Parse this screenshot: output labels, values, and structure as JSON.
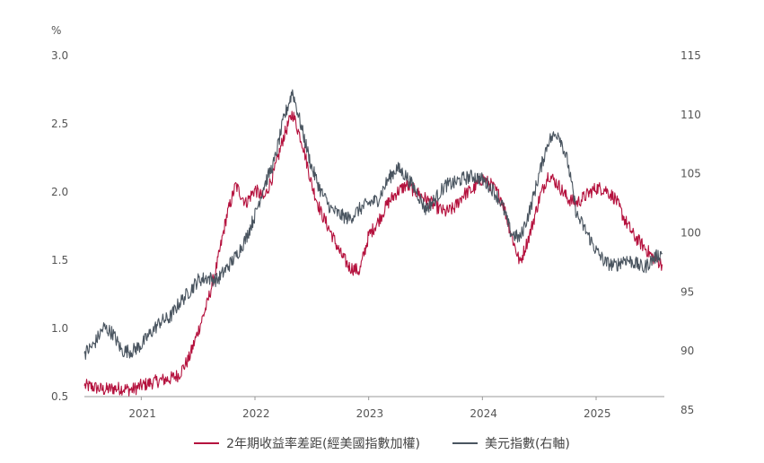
{
  "chart_data": {
    "type": "line",
    "left_axis_unit": "%",
    "left_ticks": [
      "3.0",
      "2.5",
      "2.0",
      "1.5",
      "1.0",
      "0.5"
    ],
    "right_ticks": [
      "115",
      "110",
      "105",
      "100",
      "95",
      "90",
      "85"
    ],
    "x_ticks": [
      "2021",
      "2022",
      "2023",
      "2024",
      "2025"
    ],
    "ylim_left": [
      0.5,
      3.0
    ],
    "ylim_right": [
      85,
      115
    ],
    "xlim": [
      2020.5,
      2025.6
    ],
    "grid": false,
    "legend_position": "bottom-center",
    "series": [
      {
        "name": "2年期收益率差距(經美國指數加權)",
        "axis": "left",
        "color": "#b5123e",
        "points": [
          [
            2020.5,
            0.58
          ],
          [
            2020.58,
            0.57
          ],
          [
            2020.67,
            0.55
          ],
          [
            2020.75,
            0.56
          ],
          [
            2020.83,
            0.56
          ],
          [
            2020.92,
            0.55
          ],
          [
            2021.0,
            0.58
          ],
          [
            2021.08,
            0.6
          ],
          [
            2021.17,
            0.62
          ],
          [
            2021.25,
            0.63
          ],
          [
            2021.33,
            0.66
          ],
          [
            2021.42,
            0.78
          ],
          [
            2021.5,
            0.98
          ],
          [
            2021.58,
            1.18
          ],
          [
            2021.67,
            1.48
          ],
          [
            2021.75,
            1.82
          ],
          [
            2021.83,
            2.05
          ],
          [
            2021.92,
            1.92
          ],
          [
            2022.0,
            2.02
          ],
          [
            2022.08,
            1.95
          ],
          [
            2022.17,
            2.15
          ],
          [
            2022.25,
            2.4
          ],
          [
            2022.33,
            2.58
          ],
          [
            2022.42,
            2.35
          ],
          [
            2022.5,
            2.05
          ],
          [
            2022.58,
            1.85
          ],
          [
            2022.67,
            1.7
          ],
          [
            2022.75,
            1.55
          ],
          [
            2022.83,
            1.45
          ],
          [
            2022.92,
            1.42
          ],
          [
            2023.0,
            1.68
          ],
          [
            2023.08,
            1.78
          ],
          [
            2023.17,
            1.92
          ],
          [
            2023.25,
            2.0
          ],
          [
            2023.33,
            2.05
          ],
          [
            2023.42,
            2.0
          ],
          [
            2023.5,
            1.95
          ],
          [
            2023.58,
            1.9
          ],
          [
            2023.67,
            1.85
          ],
          [
            2023.75,
            1.88
          ],
          [
            2023.83,
            1.98
          ],
          [
            2023.92,
            2.02
          ],
          [
            2024.0,
            2.1
          ],
          [
            2024.08,
            2.05
          ],
          [
            2024.17,
            1.95
          ],
          [
            2024.25,
            1.7
          ],
          [
            2024.33,
            1.48
          ],
          [
            2024.42,
            1.7
          ],
          [
            2024.5,
            1.95
          ],
          [
            2024.58,
            2.13
          ],
          [
            2024.67,
            2.05
          ],
          [
            2024.75,
            1.95
          ],
          [
            2024.83,
            1.92
          ],
          [
            2024.92,
            1.98
          ],
          [
            2025.0,
            2.03
          ],
          [
            2025.08,
            2.02
          ],
          [
            2025.17,
            1.95
          ],
          [
            2025.25,
            1.8
          ],
          [
            2025.33,
            1.68
          ],
          [
            2025.42,
            1.6
          ],
          [
            2025.5,
            1.52
          ],
          [
            2025.58,
            1.47
          ]
        ]
      },
      {
        "name": "美元指數(右軸)",
        "axis": "right",
        "color": "#4a5560",
        "points": [
          [
            2020.5,
            89.8
          ],
          [
            2020.58,
            90.5
          ],
          [
            2020.67,
            92.0
          ],
          [
            2020.75,
            91.5
          ],
          [
            2020.83,
            90.0
          ],
          [
            2020.92,
            90.0
          ],
          [
            2021.0,
            90.5
          ],
          [
            2021.08,
            91.5
          ],
          [
            2021.17,
            92.5
          ],
          [
            2021.25,
            92.8
          ],
          [
            2021.33,
            94.0
          ],
          [
            2021.42,
            95.0
          ],
          [
            2021.5,
            96.0
          ],
          [
            2021.58,
            96.2
          ],
          [
            2021.67,
            96.0
          ],
          [
            2021.75,
            97.0
          ],
          [
            2021.83,
            98.0
          ],
          [
            2021.92,
            99.5
          ],
          [
            2022.0,
            101.5
          ],
          [
            2022.08,
            104.0
          ],
          [
            2022.17,
            106.0
          ],
          [
            2022.25,
            109.5
          ],
          [
            2022.33,
            112.0
          ],
          [
            2022.42,
            108.5
          ],
          [
            2022.5,
            105.5
          ],
          [
            2022.58,
            103.5
          ],
          [
            2022.67,
            102.0
          ],
          [
            2022.75,
            101.5
          ],
          [
            2022.83,
            101.2
          ],
          [
            2022.92,
            102.0
          ],
          [
            2023.0,
            102.5
          ],
          [
            2023.08,
            102.8
          ],
          [
            2023.17,
            104.5
          ],
          [
            2023.25,
            105.5
          ],
          [
            2023.33,
            104.8
          ],
          [
            2023.42,
            103.5
          ],
          [
            2023.5,
            102.0
          ],
          [
            2023.58,
            102.8
          ],
          [
            2023.67,
            104.0
          ],
          [
            2023.75,
            104.2
          ],
          [
            2023.83,
            104.6
          ],
          [
            2023.92,
            104.8
          ],
          [
            2024.0,
            104.5
          ],
          [
            2024.08,
            103.8
          ],
          [
            2024.17,
            102.5
          ],
          [
            2024.25,
            100.0
          ],
          [
            2024.33,
            99.5
          ],
          [
            2024.42,
            102.0
          ],
          [
            2024.5,
            105.0
          ],
          [
            2024.58,
            107.8
          ],
          [
            2024.67,
            108.5
          ],
          [
            2024.75,
            106.0
          ],
          [
            2024.83,
            101.5
          ],
          [
            2024.92,
            100.0
          ],
          [
            2025.0,
            98.5
          ],
          [
            2025.08,
            97.5
          ],
          [
            2025.17,
            97.2
          ],
          [
            2025.25,
            97.8
          ],
          [
            2025.33,
            97.5
          ],
          [
            2025.42,
            97.0
          ],
          [
            2025.5,
            97.8
          ],
          [
            2025.58,
            98.3
          ]
        ]
      }
    ]
  }
}
